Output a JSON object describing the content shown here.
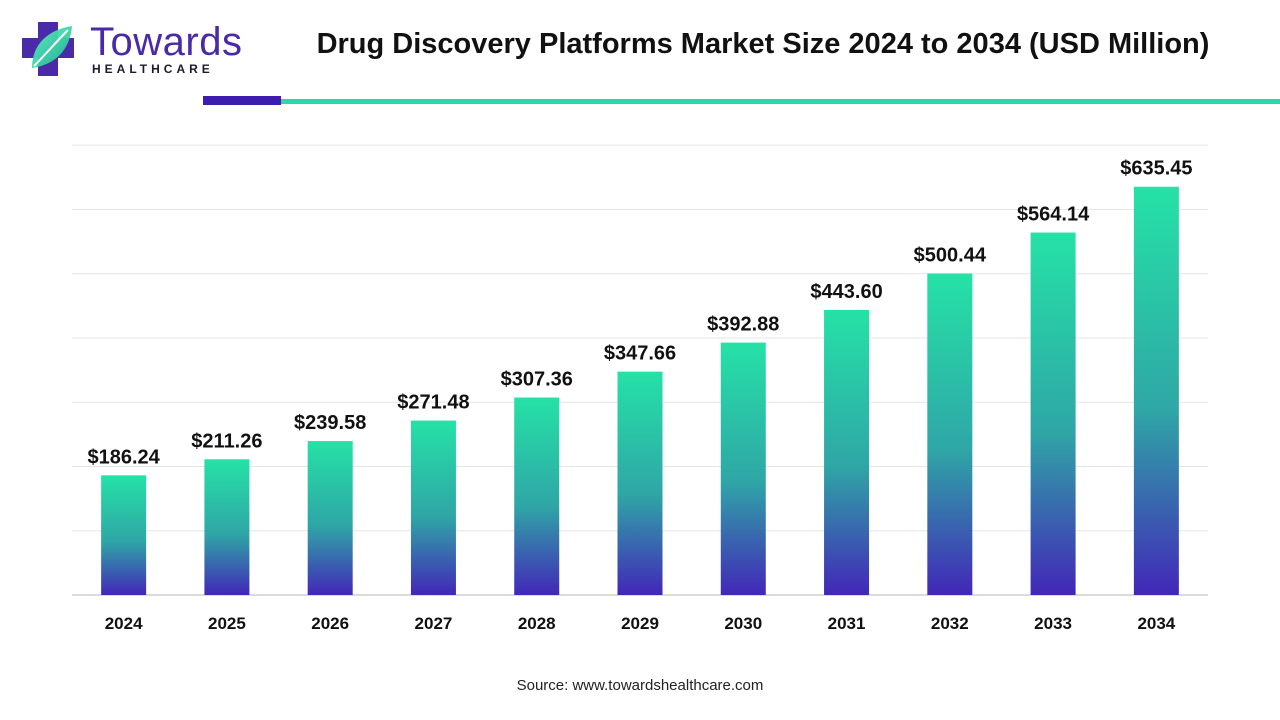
{
  "brand": {
    "name": "Towards",
    "subtitle": "HEALTHCARE",
    "logo_icon": "medical-cross-leaf-icon"
  },
  "title": "Drug Discovery Platforms Market Size 2024 to 2034 (USD Million)",
  "source": "Source: www.towardshealthcare.com",
  "colors": {
    "brand_purple": "#3d1db0",
    "accent_teal": "#2fd6a7",
    "bar_top": "#25e2a6",
    "bar_bottom": "#4227b8",
    "text": "#111111",
    "grid": "#e6e6e6"
  },
  "chart_data": {
    "type": "bar",
    "categories": [
      "2024",
      "2025",
      "2026",
      "2027",
      "2028",
      "2029",
      "2030",
      "2031",
      "2032",
      "2033",
      "2034"
    ],
    "values": [
      186.24,
      211.26,
      239.58,
      271.48,
      307.36,
      347.66,
      392.88,
      443.6,
      500.44,
      564.14,
      635.45
    ],
    "data_labels": [
      "$186.24",
      "$211.26",
      "$239.58",
      "$271.48",
      "$307.36",
      "$347.66",
      "$392.88",
      "$443.60",
      "$500.44",
      "$564.14",
      "$635.45"
    ],
    "title": "Drug Discovery Platforms Market Size 2024 to 2034 (USD Million)",
    "xlabel": "",
    "ylabel": "",
    "ylim": [
      0,
      700
    ],
    "grid": true,
    "legend": "none"
  }
}
